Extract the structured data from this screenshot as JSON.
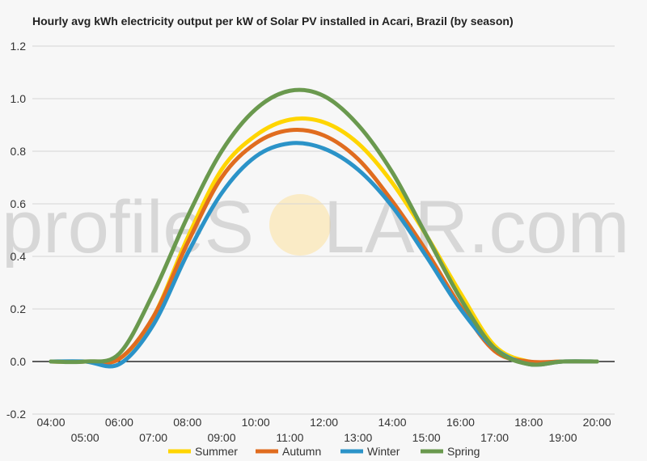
{
  "chart_data": {
    "type": "line",
    "title": "Hourly avg kWh electricity output per kW of Solar PV installed in Acari, Brazil (by season)",
    "xlabel": "",
    "ylabel": "",
    "x": [
      "04:00",
      "05:00",
      "06:00",
      "07:00",
      "08:00",
      "09:00",
      "10:00",
      "11:00",
      "12:00",
      "13:00",
      "14:00",
      "15:00",
      "16:00",
      "17:00",
      "18:00",
      "19:00",
      "20:00"
    ],
    "y_ticks": [
      "-0.2",
      "0.0",
      "0.2",
      "0.4",
      "0.6",
      "0.8",
      "1.0",
      "1.2"
    ],
    "ylim": [
      -0.2,
      1.2
    ],
    "grid": true,
    "legend_position": "bottom",
    "series": [
      {
        "name": "Summer",
        "color": "#FFD500",
        "values": [
          0,
          0,
          0.01,
          0.17,
          0.47,
          0.73,
          0.86,
          0.92,
          0.91,
          0.83,
          0.68,
          0.48,
          0.26,
          0.06,
          0,
          0,
          0
        ]
      },
      {
        "name": "Autumn",
        "color": "#E06C1F",
        "values": [
          0,
          0,
          0.01,
          0.17,
          0.45,
          0.7,
          0.83,
          0.88,
          0.86,
          0.77,
          0.61,
          0.42,
          0.21,
          0.04,
          0,
          0,
          0
        ]
      },
      {
        "name": "Winter",
        "color": "#2B93C8",
        "values": [
          0,
          0,
          -0.01,
          0.14,
          0.41,
          0.64,
          0.78,
          0.83,
          0.81,
          0.73,
          0.59,
          0.4,
          0.2,
          0.05,
          -0.01,
          0,
          0
        ]
      },
      {
        "name": "Spring",
        "color": "#6A994E",
        "values": [
          0,
          0,
          0.03,
          0.26,
          0.55,
          0.8,
          0.96,
          1.03,
          1.01,
          0.9,
          0.72,
          0.48,
          0.24,
          0.05,
          -0.01,
          0,
          0
        ]
      }
    ]
  },
  "watermark": {
    "text_left": "profileS",
    "text_right": "LAR.com",
    "sun_color": "#FBE7B5"
  }
}
